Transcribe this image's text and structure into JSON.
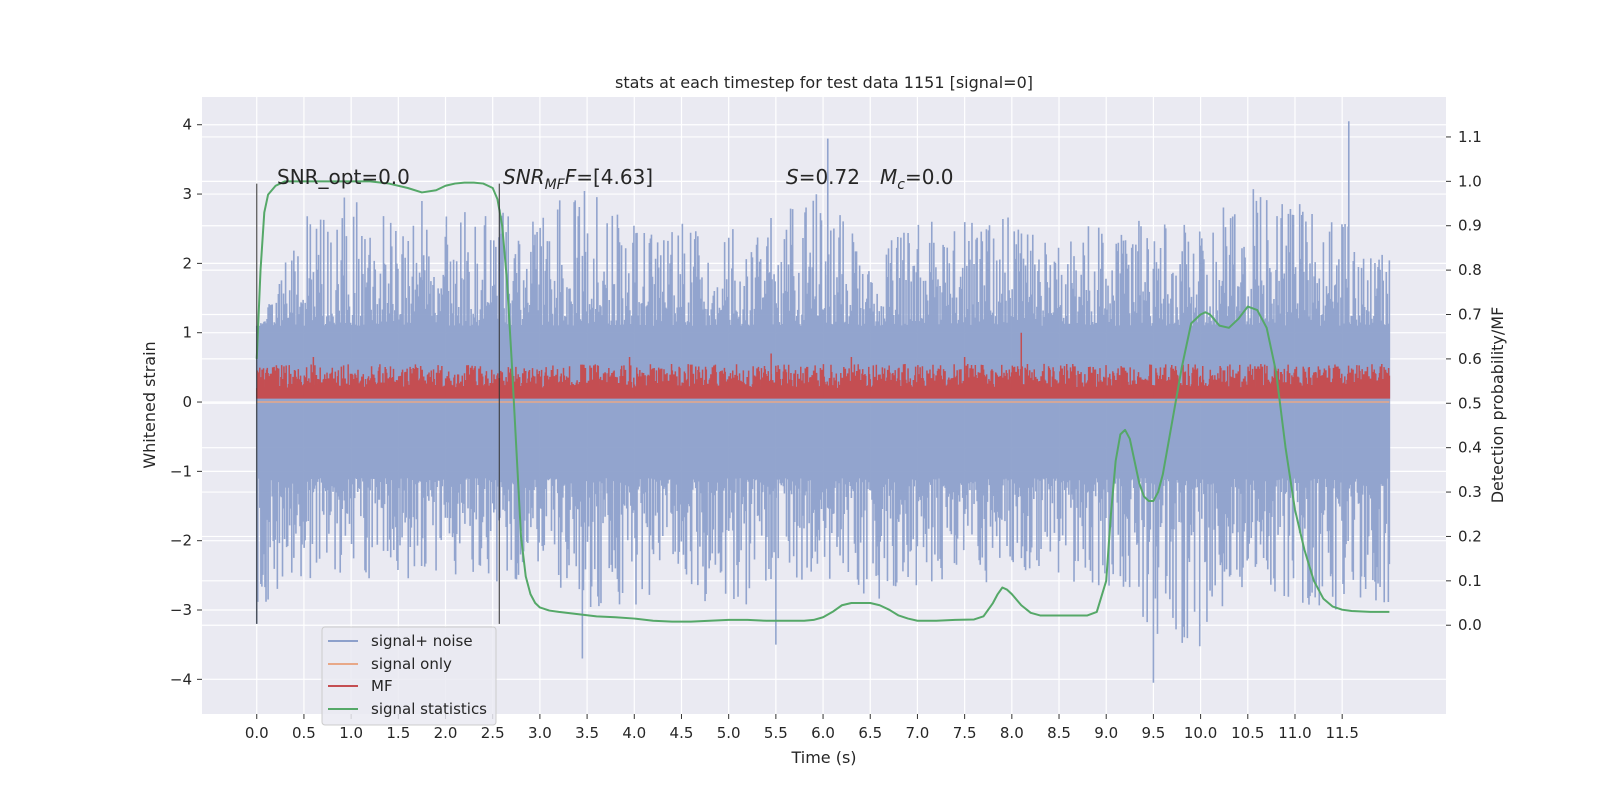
{
  "chart_data": {
    "type": "line",
    "title": "stats at each timestep for test data 1151 [signal=0]",
    "xlabel": "Time (s)",
    "ylabel_left": "Whitened strain",
    "ylabel_right": "Detection probability/MF",
    "xlim": [
      -0.58,
      12.6
    ],
    "ylim_left": [
      -4.5,
      4.4
    ],
    "ylim_right": [
      -0.2,
      1.19
    ],
    "x_ticks": [
      "0.0",
      "0.5",
      "1.0",
      "1.5",
      "2.0",
      "2.5",
      "3.0",
      "3.5",
      "4.0",
      "4.5",
      "5.0",
      "5.5",
      "6.0",
      "6.5",
      "7.0",
      "7.5",
      "8.0",
      "8.5",
      "9.0",
      "9.5",
      "10.0",
      "10.5",
      "11.0",
      "11.5"
    ],
    "y_ticks_left": [
      "4",
      "3",
      "2",
      "1",
      "0",
      "−1",
      "−2",
      "−3",
      "−4"
    ],
    "y_ticks_right": [
      "1.1",
      "1.0",
      "0.9",
      "0.8",
      "0.7",
      "0.6",
      "0.5",
      "0.4",
      "0.3",
      "0.2",
      "0.1",
      "0.0"
    ],
    "grid": true,
    "legend_position": "lower-left",
    "vlines_x": [
      0.0,
      2.57
    ],
    "vline_range_left": [
      -3.2,
      3.15
    ],
    "annotations": {
      "snr_opt": "SNR_opt=0.0",
      "snr_mf_label": "SNR",
      "snr_mf_sub": "MF",
      "snr_mf_value": "=[4.63]",
      "s_label": "S",
      "s_value": "=0.72",
      "mc_label": "M",
      "mc_sub": "c",
      "mc_value": "=0.0"
    },
    "series": [
      {
        "name": "signal+ noise",
        "color": "#8da0cb",
        "axis": "left",
        "x_range": [
          0.0,
          12.0
        ],
        "y_envelope_upper": [
          1.0,
          2.7,
          3.0,
          2.6,
          2.7,
          2.8,
          2.7,
          3.2,
          2.6,
          2.6,
          2.5,
          2.7,
          3.1,
          2.5,
          2.6,
          2.6,
          2.7,
          2.6,
          2.6,
          2.7,
          2.6,
          3.1,
          2.9,
          2.6,
          2.5
        ],
        "y_envelope_lower": [
          -3.2,
          -2.6,
          -2.6,
          -2.6,
          -2.5,
          -2.6,
          -2.6,
          -3.0,
          -3.1,
          -2.6,
          -3.2,
          -2.6,
          -2.6,
          -3.0,
          -2.7,
          -2.7,
          -2.5,
          -2.6,
          -2.7,
          -3.4,
          -3.6,
          -2.6,
          -3.0,
          -3.1,
          -3.0
        ],
        "y_peaks": [
          [
            6.05,
            3.8
          ],
          [
            11.57,
            4.05
          ],
          [
            9.5,
            -4.05
          ],
          [
            5.5,
            -3.5
          ],
          [
            3.45,
            -3.7
          ],
          [
            0.0,
            -3.2
          ],
          [
            1.75,
            2.9
          ]
        ]
      },
      {
        "name": "signal only",
        "color": "#e8a888",
        "axis": "left",
        "x": [
          0.0,
          12.0
        ],
        "y": [
          0.0,
          0.0
        ]
      },
      {
        "name": "MF",
        "color": "#c44e52",
        "axis": "left",
        "x_range": [
          0.0,
          12.0
        ],
        "y_base": 0.05,
        "y_typical_max": 0.55,
        "y_peaks": [
          [
            8.1,
            1.0
          ],
          [
            0.6,
            0.65
          ],
          [
            5.45,
            0.7
          ],
          [
            3.95,
            0.65
          ],
          [
            6.3,
            0.65
          ],
          [
            7.5,
            0.65
          ]
        ]
      },
      {
        "name": "signal statistics",
        "color": "#55a868",
        "axis": "right",
        "x": [
          0.0,
          0.04,
          0.08,
          0.12,
          0.2,
          0.3,
          0.5,
          0.8,
          1.0,
          1.2,
          1.4,
          1.6,
          1.75,
          1.9,
          2.0,
          2.1,
          2.2,
          2.3,
          2.4,
          2.45,
          2.5,
          2.55,
          2.6,
          2.65,
          2.7,
          2.75,
          2.8,
          2.85,
          2.9,
          2.95,
          3.0,
          3.1,
          3.2,
          3.4,
          3.6,
          3.8,
          4.0,
          4.2,
          4.4,
          4.6,
          4.8,
          5.0,
          5.2,
          5.4,
          5.6,
          5.8,
          5.9,
          6.0,
          6.1,
          6.2,
          6.3,
          6.4,
          6.5,
          6.6,
          6.7,
          6.8,
          6.9,
          7.0,
          7.2,
          7.4,
          7.6,
          7.7,
          7.8,
          7.85,
          7.9,
          7.95,
          8.0,
          8.1,
          8.2,
          8.3,
          8.4,
          8.6,
          8.8,
          8.9,
          9.0,
          9.05,
          9.1,
          9.15,
          9.2,
          9.25,
          9.3,
          9.35,
          9.4,
          9.45,
          9.5,
          9.55,
          9.6,
          9.7,
          9.8,
          9.9,
          10.0,
          10.05,
          10.1,
          10.2,
          10.3,
          10.4,
          10.5,
          10.6,
          10.7,
          10.8,
          10.9,
          11.0,
          11.1,
          11.2,
          11.3,
          11.4,
          11.5,
          11.6,
          11.8,
          12.0
        ],
        "y": [
          0.6,
          0.8,
          0.93,
          0.97,
          0.99,
          1.0,
          1.0,
          1.0,
          1.0,
          1.0,
          0.995,
          0.985,
          0.975,
          0.98,
          0.99,
          0.995,
          0.997,
          0.997,
          0.995,
          0.99,
          0.985,
          0.96,
          0.9,
          0.78,
          0.6,
          0.4,
          0.2,
          0.11,
          0.07,
          0.05,
          0.04,
          0.033,
          0.03,
          0.025,
          0.02,
          0.018,
          0.015,
          0.01,
          0.008,
          0.008,
          0.01,
          0.012,
          0.012,
          0.01,
          0.01,
          0.01,
          0.012,
          0.018,
          0.03,
          0.045,
          0.05,
          0.05,
          0.05,
          0.045,
          0.035,
          0.022,
          0.015,
          0.01,
          0.01,
          0.012,
          0.013,
          0.02,
          0.05,
          0.07,
          0.085,
          0.08,
          0.07,
          0.045,
          0.028,
          0.022,
          0.022,
          0.022,
          0.022,
          0.03,
          0.1,
          0.25,
          0.37,
          0.43,
          0.44,
          0.42,
          0.37,
          0.32,
          0.29,
          0.28,
          0.28,
          0.3,
          0.34,
          0.46,
          0.58,
          0.68,
          0.7,
          0.705,
          0.7,
          0.675,
          0.67,
          0.69,
          0.718,
          0.71,
          0.67,
          0.57,
          0.4,
          0.26,
          0.17,
          0.1,
          0.06,
          0.042,
          0.035,
          0.032,
          0.03,
          0.03
        ]
      }
    ]
  }
}
